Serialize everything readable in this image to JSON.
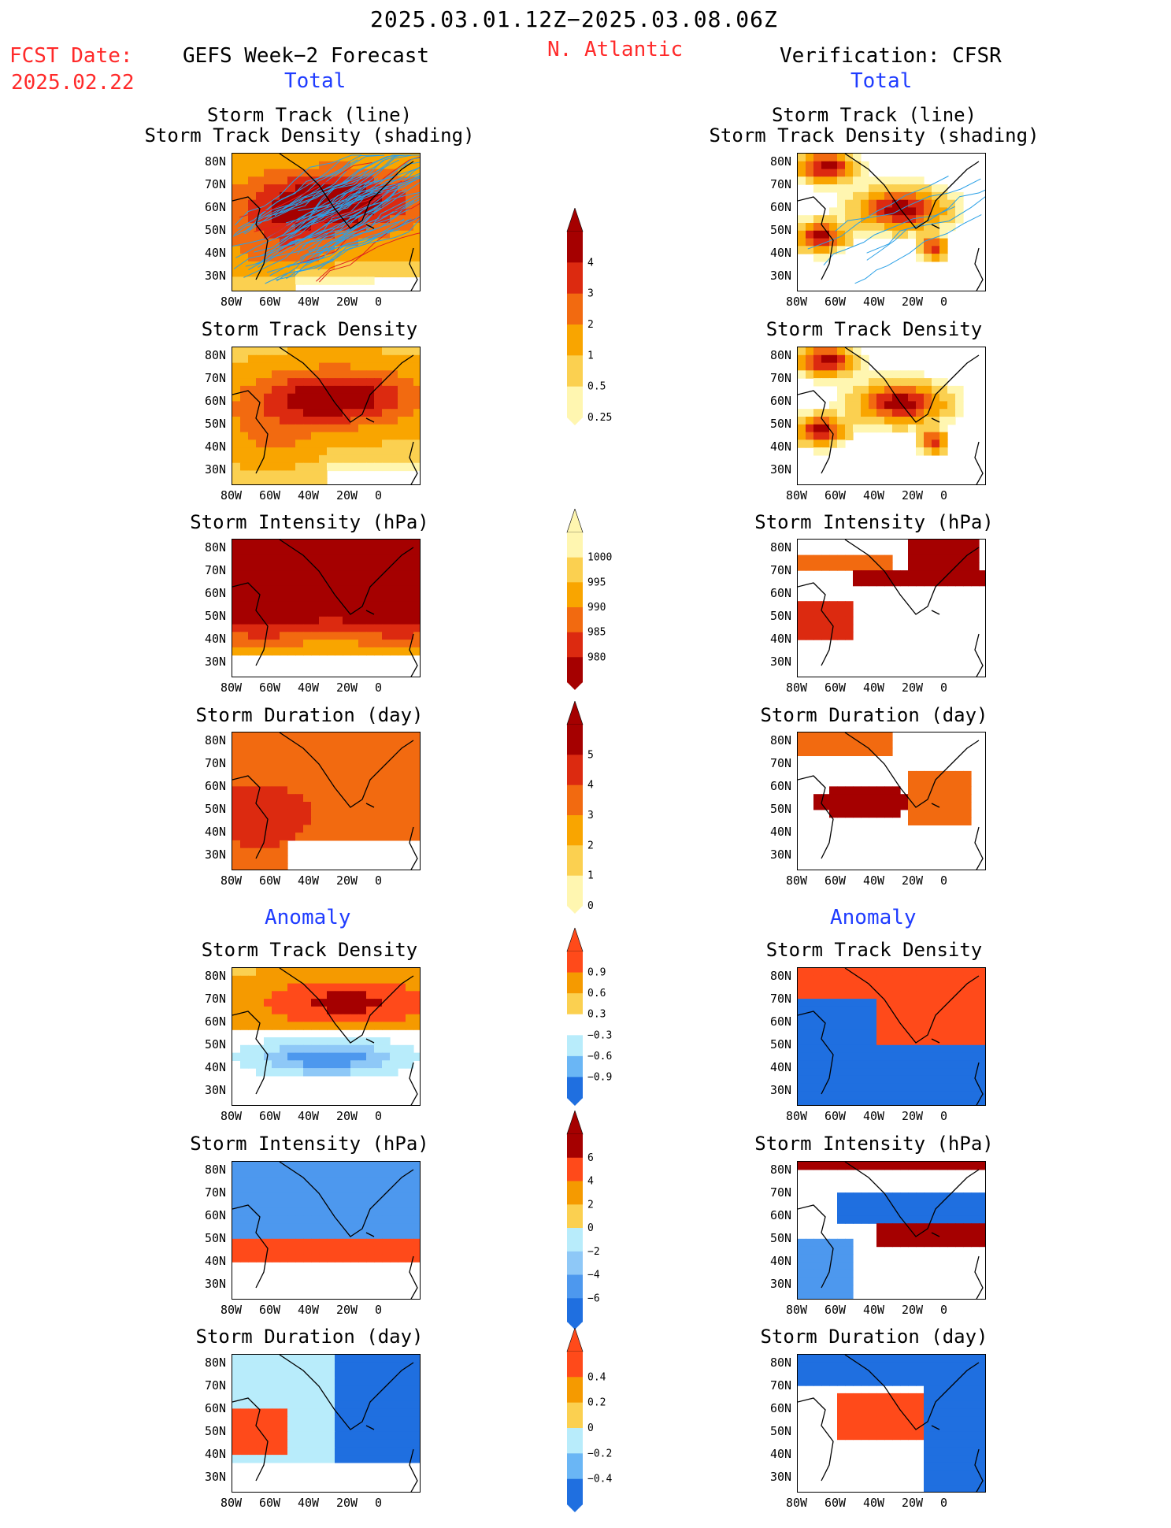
{
  "header": {
    "date_range": "2025.03.01.12Z−2025.03.08.06Z",
    "fcst_label": "FCST Date:",
    "fcst_date": "2025.02.22",
    "region": "N. Atlantic",
    "left_model": "GEFS Week−2 Forecast",
    "right_model": "Verification: CFSR",
    "total_label_left": "Total",
    "total_label_right": "Total",
    "anomaly_label_left": "Anomaly",
    "anomaly_label_right": "Anomaly"
  },
  "panel_titles": {
    "track_line_1": "Storm Track (line)",
    "track_line_2": "Storm Track Density (shading)",
    "track_density": "Storm Track Density",
    "intensity": "Storm Intensity (hPa)",
    "duration": "Storm Duration (day)"
  },
  "colors": {
    "title_red": "#ff2a2a",
    "label_blue": "#1f3cff",
    "track_blue": "#2aa0e6",
    "track_red": "#e02020"
  },
  "chart_data": [
    {
      "type": "heatmap",
      "id": "gefs-total-track",
      "title": "Storm Track (line) / Storm Track Density (shading)",
      "x_ticks": [
        "80W",
        "60W",
        "40W",
        "20W",
        "0"
      ],
      "y_ticks": [
        "80N",
        "70N",
        "60N",
        "50N",
        "40N",
        "30N"
      ],
      "levels": [
        0.25,
        0.5,
        1,
        2,
        3,
        4
      ]
    },
    {
      "type": "heatmap",
      "id": "cfsr-total-track",
      "title": "Storm Track (line) / Storm Track Density (shading)",
      "x_ticks": [
        "80W",
        "60W",
        "40W",
        "20W",
        "0"
      ],
      "y_ticks": [
        "80N",
        "70N",
        "60N",
        "50N",
        "40N",
        "30N"
      ],
      "levels": [
        0.25,
        0.5,
        1,
        2,
        3,
        4
      ]
    },
    {
      "type": "heatmap",
      "id": "gefs-total-density",
      "title": "Storm Track Density",
      "x_ticks": [
        "80W",
        "60W",
        "40W",
        "20W",
        "0"
      ],
      "y_ticks": [
        "80N",
        "70N",
        "60N",
        "50N",
        "40N",
        "30N"
      ],
      "levels": [
        0.25,
        0.5,
        1,
        2,
        3,
        4
      ]
    },
    {
      "type": "heatmap",
      "id": "cfsr-total-density",
      "title": "Storm Track Density",
      "x_ticks": [
        "80W",
        "60W",
        "40W",
        "20W",
        "0"
      ],
      "y_ticks": [
        "80N",
        "70N",
        "60N",
        "50N",
        "40N",
        "30N"
      ],
      "levels": [
        0.25,
        0.5,
        1,
        2,
        3,
        4
      ]
    },
    {
      "type": "heatmap",
      "id": "gefs-total-intensity",
      "title": "Storm Intensity (hPa)",
      "x_ticks": [
        "80W",
        "60W",
        "40W",
        "20W",
        "0"
      ],
      "y_ticks": [
        "80N",
        "70N",
        "60N",
        "50N",
        "40N",
        "30N"
      ],
      "levels": [
        1000,
        995,
        990,
        985,
        980
      ]
    },
    {
      "type": "heatmap",
      "id": "cfsr-total-intensity",
      "title": "Storm Intensity (hPa)",
      "x_ticks": [
        "80W",
        "60W",
        "40W",
        "20W",
        "0"
      ],
      "y_ticks": [
        "80N",
        "70N",
        "60N",
        "50N",
        "40N",
        "30N"
      ],
      "levels": [
        1000,
        995,
        990,
        985,
        980
      ]
    },
    {
      "type": "heatmap",
      "id": "gefs-total-duration",
      "title": "Storm Duration (day)",
      "x_ticks": [
        "80W",
        "60W",
        "40W",
        "20W",
        "0"
      ],
      "y_ticks": [
        "80N",
        "70N",
        "60N",
        "50N",
        "40N",
        "30N"
      ],
      "levels": [
        0,
        1,
        2,
        3,
        4,
        5
      ]
    },
    {
      "type": "heatmap",
      "id": "cfsr-total-duration",
      "title": "Storm Duration (day)",
      "x_ticks": [
        "80W",
        "60W",
        "40W",
        "20W",
        "0"
      ],
      "y_ticks": [
        "80N",
        "70N",
        "60N",
        "50N",
        "40N",
        "30N"
      ],
      "levels": [
        0,
        1,
        2,
        3,
        4,
        5
      ]
    },
    {
      "type": "heatmap",
      "id": "gefs-anom-density",
      "title": "Storm Track Density",
      "x_ticks": [
        "80W",
        "60W",
        "40W",
        "20W",
        "0"
      ],
      "y_ticks": [
        "80N",
        "70N",
        "60N",
        "50N",
        "40N",
        "30N"
      ],
      "levels": [
        -0.9,
        -0.6,
        -0.3,
        0.3,
        0.6,
        0.9
      ]
    },
    {
      "type": "heatmap",
      "id": "cfsr-anom-density",
      "title": "Storm Track Density",
      "x_ticks": [
        "80W",
        "60W",
        "40W",
        "20W",
        "0"
      ],
      "y_ticks": [
        "80N",
        "70N",
        "60N",
        "50N",
        "40N",
        "30N"
      ],
      "levels": [
        -0.9,
        -0.6,
        -0.3,
        0.3,
        0.6,
        0.9
      ]
    },
    {
      "type": "heatmap",
      "id": "gefs-anom-intensity",
      "title": "Storm Intensity (hPa)",
      "x_ticks": [
        "80W",
        "60W",
        "40W",
        "20W",
        "0"
      ],
      "y_ticks": [
        "80N",
        "70N",
        "60N",
        "50N",
        "40N",
        "30N"
      ],
      "levels": [
        -6,
        -4,
        -2,
        0,
        2,
        4,
        6
      ]
    },
    {
      "type": "heatmap",
      "id": "cfsr-anom-intensity",
      "title": "Storm Intensity (hPa)",
      "x_ticks": [
        "80W",
        "60W",
        "40W",
        "20W",
        "0"
      ],
      "y_ticks": [
        "80N",
        "70N",
        "60N",
        "50N",
        "40N",
        "30N"
      ],
      "levels": [
        -6,
        -4,
        -2,
        0,
        2,
        4,
        6
      ]
    },
    {
      "type": "heatmap",
      "id": "gefs-anom-duration",
      "title": "Storm Duration (day)",
      "x_ticks": [
        "80W",
        "60W",
        "40W",
        "20W",
        "0"
      ],
      "y_ticks": [
        "80N",
        "70N",
        "60N",
        "50N",
        "40N",
        "30N"
      ],
      "levels": [
        -0.4,
        -0.2,
        0,
        0.2,
        0.4
      ]
    },
    {
      "type": "heatmap",
      "id": "cfsr-anom-duration",
      "title": "Storm Duration (day)",
      "x_ticks": [
        "80W",
        "60W",
        "40W",
        "20W",
        "0"
      ],
      "y_ticks": [
        "80N",
        "70N",
        "60N",
        "50N",
        "40N",
        "30N"
      ],
      "levels": [
        -0.4,
        -0.2,
        0,
        0.2,
        0.4
      ]
    }
  ],
  "colorbars": [
    {
      "id": "cb-density",
      "labels": [
        "4",
        "3",
        "2",
        "1",
        "0.5",
        "0.25"
      ],
      "colors": [
        "#a50000",
        "#dc2a10",
        "#f26a10",
        "#f9a500",
        "#fbd050",
        "#fff6b0"
      ]
    },
    {
      "id": "cb-intensity",
      "labels": [
        "1000",
        "995",
        "990",
        "985",
        "980"
      ],
      "colors": [
        "#fff6b0",
        "#fbd050",
        "#f9a500",
        "#f26a10",
        "#dc2a10",
        "#a50000"
      ]
    },
    {
      "id": "cb-duration",
      "labels": [
        "5",
        "4",
        "3",
        "2",
        "1",
        "0"
      ],
      "colors": [
        "#a50000",
        "#dc2a10",
        "#f26a10",
        "#f9a500",
        "#fbd050",
        "#fff6b0"
      ]
    },
    {
      "id": "cb-anom-density",
      "labels": [
        "0.9",
        "0.6",
        "0.3",
        "−0.3",
        "−0.6",
        "−0.9"
      ],
      "colors": [
        "#ff4a1a",
        "#f59a00",
        "#fbd050",
        "#ffffff",
        "#b8ecfb",
        "#6ab6f5",
        "#1f6fe0"
      ]
    },
    {
      "id": "cb-anom-intensity",
      "labels": [
        "6",
        "4",
        "2",
        "0",
        "−2",
        "−4",
        "−6"
      ],
      "colors": [
        "#a50000",
        "#ff4a1a",
        "#f59a00",
        "#fbd050",
        "#b8ecfb",
        "#8ec8f7",
        "#4d98ee",
        "#1f6fe0"
      ]
    },
    {
      "id": "cb-anom-duration",
      "labels": [
        "0.4",
        "0.2",
        "0",
        "−0.2",
        "−0.4"
      ],
      "colors": [
        "#ff4a1a",
        "#f59a00",
        "#fbd050",
        "#b8ecfb",
        "#6ab6f5",
        "#1f6fe0"
      ]
    }
  ]
}
